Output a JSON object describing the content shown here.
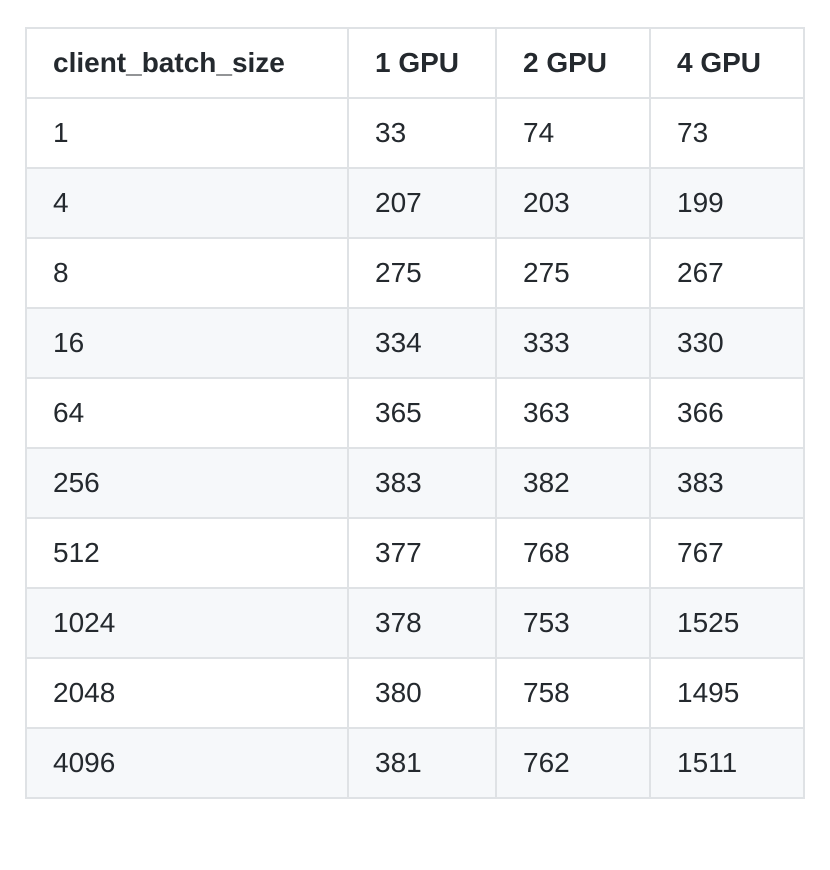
{
  "table": {
    "headers": [
      "client_batch_size",
      "1 GPU",
      "2 GPU",
      "4 GPU"
    ],
    "rows": [
      [
        "1",
        "33",
        "74",
        "73"
      ],
      [
        "4",
        "207",
        "203",
        "199"
      ],
      [
        "8",
        "275",
        "275",
        "267"
      ],
      [
        "16",
        "334",
        "333",
        "330"
      ],
      [
        "64",
        "365",
        "363",
        "366"
      ],
      [
        "256",
        "383",
        "382",
        "383"
      ],
      [
        "512",
        "377",
        "768",
        "767"
      ],
      [
        "1024",
        "378",
        "753",
        "1525"
      ],
      [
        "2048",
        "380",
        "758",
        "1495"
      ],
      [
        "4096",
        "381",
        "762",
        "1511"
      ]
    ]
  }
}
